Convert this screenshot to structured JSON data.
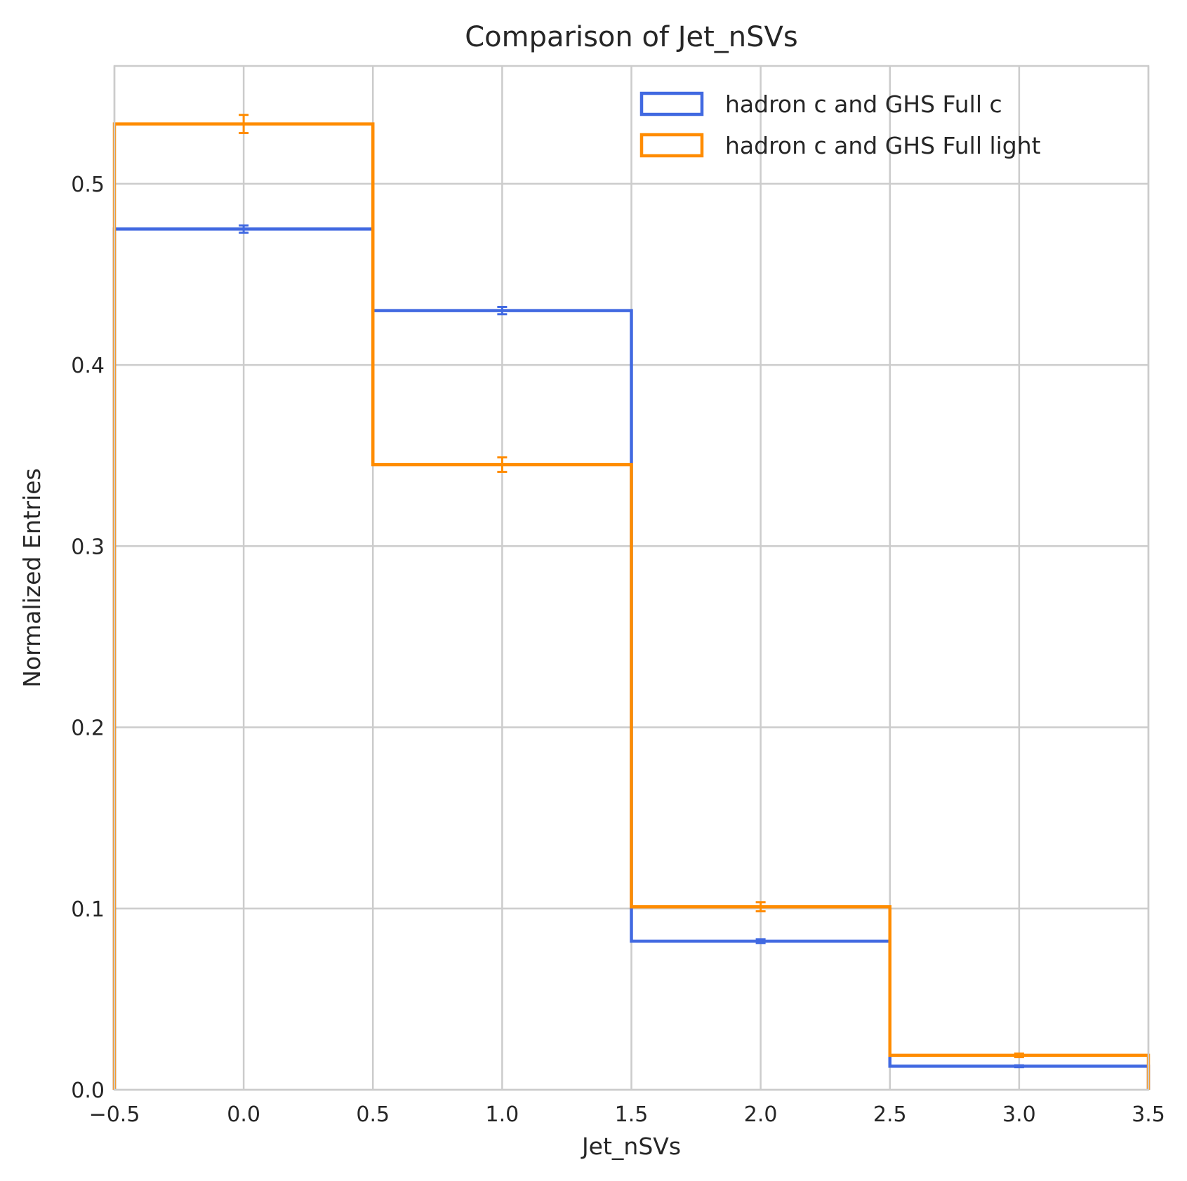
{
  "chart_data": {
    "type": "histogram-step",
    "title": "Comparison of Jet_nSVs",
    "xlabel": "Jet_nSVs",
    "ylabel": "Normalized Entries",
    "xlim": [
      -0.5,
      3.5
    ],
    "ylim": [
      0.0,
      0.565
    ],
    "xticks": [
      -0.5,
      0.0,
      0.5,
      1.0,
      1.5,
      2.0,
      2.5,
      3.0,
      3.5
    ],
    "xtick_labels": [
      "−0.5",
      "0.0",
      "0.5",
      "1.0",
      "1.5",
      "2.0",
      "2.5",
      "3.0",
      "3.5"
    ],
    "yticks": [
      0.0,
      0.1,
      0.2,
      0.3,
      0.4,
      0.5
    ],
    "ytick_labels": [
      "0.0",
      "0.1",
      "0.2",
      "0.3",
      "0.4",
      "0.5"
    ],
    "grid": true,
    "legend_position": "top-right",
    "bin_edges": [
      -0.5,
      0.5,
      1.5,
      2.5,
      3.5
    ],
    "bin_centers": [
      0.0,
      1.0,
      2.0,
      3.0
    ],
    "series": [
      {
        "name": "hadron c and GHS Full c",
        "color": "#4169e1",
        "values": [
          0.475,
          0.43,
          0.082,
          0.013
        ],
        "errors": [
          0.002,
          0.002,
          0.001,
          0.0005
        ]
      },
      {
        "name": "hadron c and GHS Full light",
        "color": "#ff8c00",
        "values": [
          0.533,
          0.345,
          0.101,
          0.019
        ],
        "errors": [
          0.005,
          0.004,
          0.0025,
          0.001
        ]
      }
    ]
  }
}
